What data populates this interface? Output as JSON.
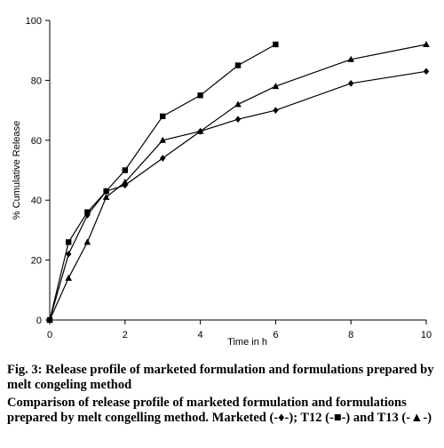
{
  "chart_data": {
    "type": "line",
    "xlabel": "Time in h",
    "ylabel": "% Cumulative Release",
    "xlim": [
      0,
      10
    ],
    "ylim": [
      0,
      100
    ],
    "xticks": [
      "0",
      "2",
      "4",
      "6",
      "8",
      "10"
    ],
    "yticks": [
      "0",
      "20",
      "40",
      "60",
      "80",
      "100"
    ],
    "grid": false,
    "legend": "none",
    "series": [
      {
        "name": "Marketed",
        "marker": "diamond",
        "x": [
          0,
          0.5,
          1,
          1.5,
          2,
          3,
          4,
          5,
          6,
          8,
          10
        ],
        "y": [
          0,
          22,
          35,
          43,
          45,
          54,
          63,
          67,
          70,
          79,
          83
        ]
      },
      {
        "name": "T12",
        "marker": "square",
        "x": [
          0,
          0.5,
          1,
          1.5,
          2,
          3,
          4,
          5,
          6
        ],
        "y": [
          0,
          26,
          36,
          43,
          50,
          68,
          75,
          85,
          92
        ]
      },
      {
        "name": "T13",
        "marker": "triangle",
        "x": [
          0,
          0.5,
          1,
          1.5,
          2,
          3,
          4,
          5,
          6,
          8,
          10
        ],
        "y": [
          0,
          14,
          26,
          41,
          46,
          60,
          63,
          72,
          78,
          87,
          92
        ]
      }
    ]
  },
  "caption": {
    "title": "Fig. 3: Release profile of marketed formulation and formulations prepared by melt congeling method",
    "body": "Comparison of release profile of marketed formulation and formulations prepared by melt congelling method. Marketed (-♦-); T12 (-■-) and T13 (-▲-)"
  },
  "colors": {
    "line": "#000000",
    "axis": "#000000"
  }
}
